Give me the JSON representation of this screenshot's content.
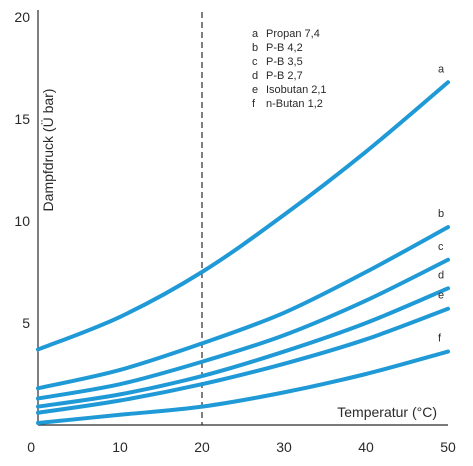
{
  "chart_data": {
    "type": "line",
    "xlabel": "Temperatur (°C)",
    "ylabel": "Dampfdruck (Ü bar)",
    "xlim": [
      0,
      50
    ],
    "ylim": [
      0,
      20
    ],
    "x_ticks": [
      "0",
      "10",
      "20",
      "30",
      "40",
      "50"
    ],
    "y_ticks": [
      "5",
      "10",
      "15",
      "20"
    ],
    "reference_line_x": 20,
    "grid": false,
    "line_color": "#1f9ad6",
    "legend_placement": "top-center",
    "legend": [
      {
        "key": "a",
        "label": "Propan 7,4"
      },
      {
        "key": "b",
        "label": "P-B 4,2"
      },
      {
        "key": "c",
        "label": "P-B 3,5"
      },
      {
        "key": "d",
        "label": "P-B 2,7"
      },
      {
        "key": "e",
        "label": "Isobutan 2,1"
      },
      {
        "key": "f",
        "label": "n-Butan 1,2"
      }
    ],
    "x": [
      0,
      10,
      20,
      30,
      40,
      50
    ],
    "series": [
      {
        "name": "a",
        "values": [
          3.7,
          5.3,
          7.5,
          10.3,
          13.4,
          16.8
        ]
      },
      {
        "name": "b",
        "values": [
          1.8,
          2.7,
          4.0,
          5.5,
          7.5,
          9.7
        ]
      },
      {
        "name": "c",
        "values": [
          1.3,
          2.0,
          3.1,
          4.4,
          6.1,
          8.1
        ]
      },
      {
        "name": "d",
        "values": [
          0.9,
          1.5,
          2.4,
          3.6,
          5.0,
          6.7
        ]
      },
      {
        "name": "e",
        "values": [
          0.6,
          1.2,
          2.0,
          3.0,
          4.2,
          5.7
        ]
      },
      {
        "name": "f",
        "values": [
          0.1,
          0.5,
          0.9,
          1.6,
          2.5,
          3.6
        ]
      }
    ]
  }
}
